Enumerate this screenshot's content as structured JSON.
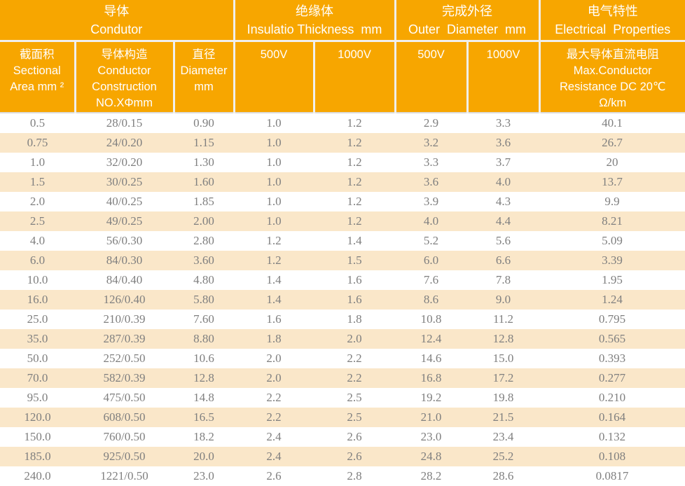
{
  "colors": {
    "header_bg": "#F7A600",
    "header_text": "#FFFFFF",
    "header_divider": "#F0EFED",
    "row_bg": "#FFFFFF",
    "row_alt_bg": "#FAE7C9",
    "data_text": "#7F7F7F"
  },
  "chart_data": {
    "type": "table",
    "title": "",
    "header_groups": [
      {
        "label": "导体\nCondutor",
        "colspan": 3
      },
      {
        "label": "绝缘体\nInsulatio Thickness  mm",
        "colspan": 2
      },
      {
        "label": "完成外径\nOuter  Diameter  mm",
        "colspan": 2
      },
      {
        "label": "电气特性\nElectrical  Properties",
        "colspan": 1
      }
    ],
    "columns": [
      "截面积\nSectional\nArea mm ²",
      "导体构造\nConductor\nConstruction\nNO.XΦmm",
      "直径\nDiameter\nmm",
      "500V",
      "1000V",
      "500V",
      "1000V",
      "最大导体直流电阻\nMax.Conductor\nResistance DC 20℃\nΩ/km"
    ],
    "rows": [
      [
        "0.5",
        "28/0.15",
        "0.90",
        "1.0",
        "1.2",
        "2.9",
        "3.3",
        "40.1"
      ],
      [
        "0.75",
        "24/0.20",
        "1.15",
        "1.0",
        "1.2",
        "3.2",
        "3.6",
        "26.7"
      ],
      [
        "1.0",
        "32/0.20",
        "1.30",
        "1.0",
        "1.2",
        "3.3",
        "3.7",
        "20"
      ],
      [
        "1.5",
        "30/0.25",
        "1.60",
        "1.0",
        "1.2",
        "3.6",
        "4.0",
        "13.7"
      ],
      [
        "2.0",
        "40/0.25",
        "1.85",
        "1.0",
        "1.2",
        "3.9",
        "4.3",
        "9.9"
      ],
      [
        "2.5",
        "49/0.25",
        "2.00",
        "1.0",
        "1.2",
        "4.0",
        "4.4",
        "8.21"
      ],
      [
        "4.0",
        "56/0.30",
        "2.80",
        "1.2",
        "1.4",
        "5.2",
        "5.6",
        "5.09"
      ],
      [
        "6.0",
        "84/0.30",
        "3.60",
        "1.2",
        "1.5",
        "6.0",
        "6.6",
        "3.39"
      ],
      [
        "10.0",
        "84/0.40",
        "4.80",
        "1.4",
        "1.6",
        "7.6",
        "7.8",
        "1.95"
      ],
      [
        "16.0",
        "126/0.40",
        "5.80",
        "1.4",
        "1.6",
        "8.6",
        "9.0",
        "1.24"
      ],
      [
        "25.0",
        "210/0.39",
        "7.60",
        "1.6",
        "1.8",
        "10.8",
        "11.2",
        "0.795"
      ],
      [
        "35.0",
        "287/0.39",
        "8.80",
        "1.8",
        "2.0",
        "12.4",
        "12.8",
        "0.565"
      ],
      [
        "50.0",
        "252/0.50",
        "10.6",
        "2.0",
        "2.2",
        "14.6",
        "15.0",
        "0.393"
      ],
      [
        "70.0",
        "582/0.39",
        "12.8",
        "2.0",
        "2.2",
        "16.8",
        "17.2",
        "0.277"
      ],
      [
        "95.0",
        "475/0.50",
        "14.8",
        "2.2",
        "2.5",
        "19.2",
        "19.8",
        "0.210"
      ],
      [
        "120.0",
        "608/0.50",
        "16.5",
        "2.2",
        "2.5",
        "21.0",
        "21.5",
        "0.164"
      ],
      [
        "150.0",
        "760/0.50",
        "18.2",
        "2.4",
        "2.6",
        "23.0",
        "23.4",
        "0.132"
      ],
      [
        "185.0",
        "925/0.50",
        "20.0",
        "2.4",
        "2.6",
        "24.8",
        "25.2",
        "0.108"
      ],
      [
        "240.0",
        "1221/0.50",
        "23.0",
        "2.6",
        "2.8",
        "28.2",
        "28.6",
        "0.0817"
      ]
    ]
  }
}
